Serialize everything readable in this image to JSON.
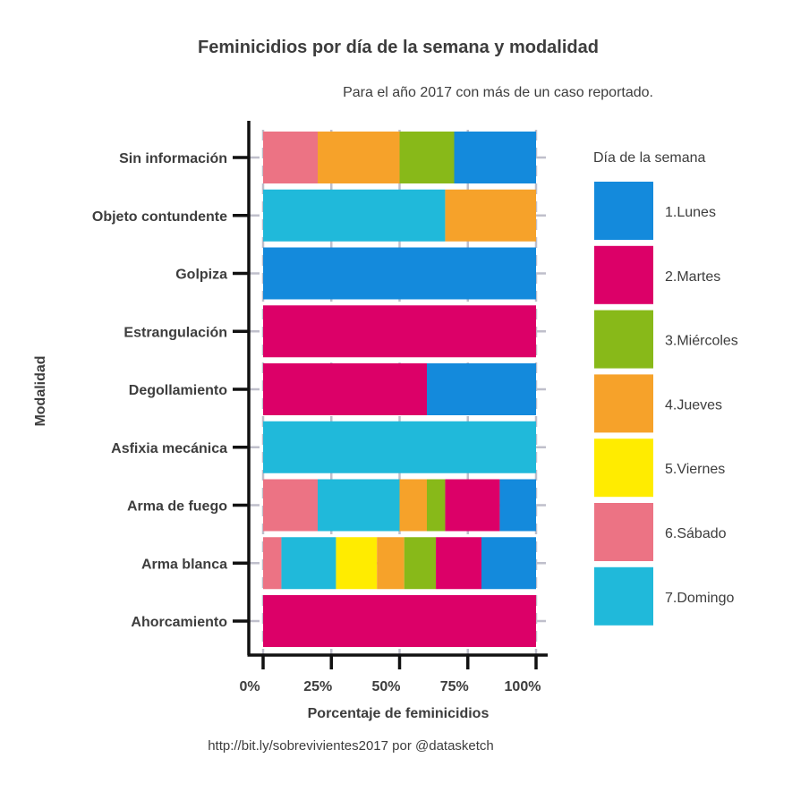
{
  "chart_data": {
    "type": "bar",
    "orientation": "horizontal",
    "stacked": "percent",
    "title": "Feminicidios por día de la semana y modalidad",
    "subtitle": "Para el año 2017 con más de un caso reportado.",
    "xlabel": "Porcentaje de feminicidios",
    "ylabel": "Modalidad",
    "caption": "http://bit.ly/sobrevivientes2017 por @datasketch",
    "xlim": [
      0,
      100
    ],
    "x_ticks": [
      "0%",
      "25%",
      "50%",
      "75%",
      "100%"
    ],
    "x_tick_values": [
      0,
      25,
      50,
      75,
      100
    ],
    "categories": [
      "Sin información",
      "Objeto contundente",
      "Golpiza",
      "Estrangulación",
      "Degollamiento",
      "Asfixia mecánica",
      "Arma de fuego",
      "Arma blanca",
      "Ahorcamiento"
    ],
    "stack_order": [
      "6.Sábado",
      "7.Domingo",
      "5.Viernes",
      "4.Jueves",
      "3.Miércoles",
      "2.Martes",
      "1.Lunes"
    ],
    "legend_title": "Día de la semana",
    "legend_position": "right",
    "grid": true,
    "series": [
      {
        "name": "1.Lunes",
        "color": "#148ADC",
        "values": [
          30,
          0,
          100,
          0,
          40,
          0,
          13.3,
          20,
          0
        ]
      },
      {
        "name": "2.Martes",
        "color": "#DC0068",
        "values": [
          0,
          0,
          0,
          100,
          60,
          0,
          20,
          16.7,
          100
        ]
      },
      {
        "name": "3.Miércoles",
        "color": "#88B919",
        "values": [
          20,
          0,
          0,
          0,
          0,
          0,
          6.7,
          11.6,
          0
        ]
      },
      {
        "name": "4.Jueves",
        "color": "#F6A22A",
        "values": [
          30,
          33.3,
          0,
          0,
          0,
          0,
          10,
          10,
          0
        ]
      },
      {
        "name": "5.Viernes",
        "color": "#FFEC00",
        "values": [
          0,
          0,
          0,
          0,
          0,
          0,
          0,
          15,
          0
        ]
      },
      {
        "name": "6.Sábado",
        "color": "#EC7384",
        "values": [
          20,
          0,
          0,
          0,
          0,
          0,
          20,
          6.7,
          0
        ]
      },
      {
        "name": "7.Domingo",
        "color": "#20B9DA",
        "values": [
          0,
          66.7,
          0,
          0,
          0,
          100,
          30,
          20,
          0
        ]
      }
    ]
  }
}
